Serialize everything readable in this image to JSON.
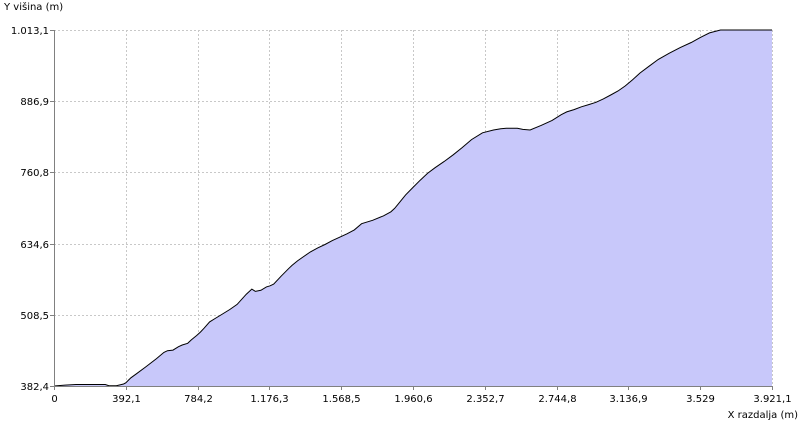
{
  "chart_data": {
    "type": "area",
    "title": "",
    "ylabel": "Y višina (m)",
    "xlabel": "X razdalja (m)",
    "xlim": [
      0,
      3921.1
    ],
    "ylim": [
      382.4,
      1013.1
    ],
    "grid": true,
    "x_ticks": [
      {
        "value": 0,
        "label": "0"
      },
      {
        "value": 392.1,
        "label": "392,1"
      },
      {
        "value": 784.2,
        "label": "784,2"
      },
      {
        "value": 1176.3,
        "label": "1.176,3"
      },
      {
        "value": 1568.5,
        "label": "1.568,5"
      },
      {
        "value": 1960.6,
        "label": "1.960,6"
      },
      {
        "value": 2352.7,
        "label": "2.352,7"
      },
      {
        "value": 2744.8,
        "label": "2.744,8"
      },
      {
        "value": 3136.9,
        "label": "3.136,9"
      },
      {
        "value": 3529,
        "label": "3.529"
      },
      {
        "value": 3921.1,
        "label": "3.921,1"
      }
    ],
    "y_ticks": [
      {
        "value": 382.4,
        "label": "382,4"
      },
      {
        "value": 508.5,
        "label": "508,5"
      },
      {
        "value": 634.6,
        "label": "634,6"
      },
      {
        "value": 760.8,
        "label": "760,8"
      },
      {
        "value": 886.9,
        "label": "886,9"
      },
      {
        "value": 1013.1,
        "label": "1.013,1"
      }
    ],
    "colors": {
      "fill": "#c8c8fa",
      "line": "#000000",
      "grid": "#c8c8c8",
      "axis": "#808080"
    },
    "series": [
      {
        "x": [
          0,
          60,
          120,
          200,
          280,
          300,
          340,
          380,
          392,
          420,
          450,
          500,
          560,
          600,
          620,
          650,
          680,
          700,
          730,
          750,
          780,
          800,
          820,
          850,
          880,
          920,
          960,
          1000,
          1050,
          1080,
          1100,
          1130,
          1160,
          1180,
          1200,
          1240,
          1280,
          1300,
          1330,
          1360,
          1400,
          1440,
          1480,
          1520,
          1560,
          1600,
          1640,
          1680,
          1740,
          1800,
          1840,
          1860,
          1880,
          1920,
          1960,
          2000,
          2040,
          2080,
          2130,
          2180,
          2230,
          2280,
          2340,
          2400,
          2440,
          2470,
          2500,
          2530,
          2560,
          2600,
          2660,
          2720,
          2770,
          2800,
          2840,
          2880,
          2920,
          2960,
          3000,
          3040,
          3080,
          3120,
          3160,
          3200,
          3250,
          3300,
          3360,
          3420,
          3480,
          3530,
          3580,
          3640,
          3700,
          3760,
          3810,
          3860,
          3890,
          3921.1
        ],
        "y": [
          382.4,
          384,
          385,
          385,
          385,
          383,
          383,
          386,
          388,
          397,
          404,
          416,
          431,
          442,
          445,
          446,
          452,
          455,
          458,
          464,
          472,
          478,
          485,
          496,
          502,
          510,
          518,
          527,
          545,
          554,
          550,
          552,
          558,
          560,
          563,
          577,
          590,
          596,
          604,
          611,
          620,
          627,
          633,
          640,
          646,
          652,
          659,
          670,
          676,
          684,
          691,
          697,
          705,
          721,
          734,
          747,
          759,
          769,
          780,
          792,
          805,
          819,
          831,
          836,
          838,
          839,
          839,
          839,
          837,
          836,
          844,
          853,
          863,
          868,
          872,
          877,
          881,
          885,
          891,
          898,
          905,
          914,
          925,
          937,
          949,
          961,
          972,
          982,
          991,
          1000,
          1008,
          1013.1,
          1013.1,
          1013.1,
          1013.1,
          1013.1,
          1013.1,
          1013.1
        ]
      }
    ]
  }
}
